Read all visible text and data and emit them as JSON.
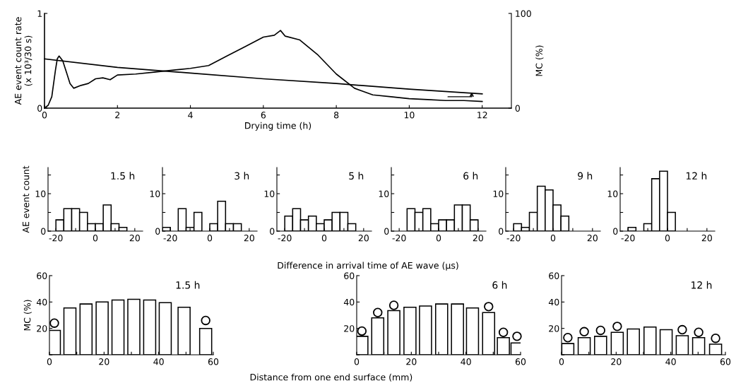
{
  "chart_data": [
    {
      "type": "line",
      "xlabel": "Drying time (h)",
      "ylabel": "AE event count rate\n(x 10³/30 s)",
      "y2label": "MC (%)",
      "xlim": [
        0,
        12.8
      ],
      "xticks": [
        0,
        2,
        4,
        6,
        8,
        10,
        12
      ],
      "ylim": [
        0,
        1
      ],
      "yticks": [
        0,
        1
      ],
      "y2lim": [
        0,
        100
      ],
      "y2ticks": [
        0,
        100
      ],
      "grid": false,
      "legend": false,
      "marker": "none",
      "line_style": "solid",
      "series": [
        {
          "color": "#000000",
          "x": [
            0,
            0.1,
            0.2,
            0.3,
            0.35,
            0.4,
            0.5,
            0.6,
            0.7,
            0.8,
            1.0,
            1.2,
            1.4,
            1.6,
            1.8,
            2.0,
            2.5,
            3.0,
            3.5,
            4.0,
            4.5,
            5.0,
            5.5,
            6.0,
            6.3,
            6.47,
            6.6,
            7.0,
            7.5,
            8.0,
            8.5,
            9.0,
            9.5,
            10.0,
            10.5,
            11.0,
            11.5,
            12.0
          ],
          "values": [
            0,
            0.03,
            0.12,
            0.4,
            0.52,
            0.55,
            0.5,
            0.38,
            0.26,
            0.21,
            0.24,
            0.26,
            0.31,
            0.32,
            0.3,
            0.35,
            0.36,
            0.38,
            0.4,
            0.42,
            0.45,
            0.55,
            0.65,
            0.75,
            0.77,
            0.82,
            0.76,
            0.72,
            0.56,
            0.36,
            0.21,
            0.14,
            0.12,
            0.1,
            0.09,
            0.08,
            0.08,
            0.07
          ]
        },
        {
          "color": "#000000",
          "axis": "y2",
          "x": [
            0,
            2,
            4,
            6,
            8,
            10,
            12
          ],
          "values": [
            52,
            43,
            37,
            31,
            26,
            20,
            15
          ]
        }
      ]
    },
    {
      "type": "histogram",
      "title": "1.5 h",
      "ylabel": "AE event count",
      "color": "#ffffff",
      "bins": [
        -24,
        -20,
        -16,
        -12,
        -8,
        -4,
        0,
        4,
        8,
        12,
        16,
        20,
        24
      ],
      "values": [
        0,
        3,
        6,
        6,
        5,
        2,
        2,
        7,
        2,
        1,
        0,
        0
      ],
      "xlim": [
        -24,
        24
      ],
      "xticks": [
        -20,
        {
          "value": -10,
          "label": null
        },
        0,
        {
          "value": 10,
          "label": null
        },
        20
      ],
      "ylim": [
        0,
        17
      ],
      "yticks": [
        0,
        {
          "value": 5,
          "label": null
        },
        10,
        {
          "value": 15,
          "label": null
        }
      ]
    },
    {
      "type": "histogram",
      "title": "3 h",
      "color": "#ffffff",
      "bins": [
        -24,
        -20,
        -16,
        -12,
        -8,
        -4,
        0,
        4,
        8,
        12,
        16,
        20,
        24
      ],
      "values": [
        1,
        0,
        6,
        1,
        5,
        0,
        2,
        8,
        2,
        2,
        0,
        0
      ],
      "xlim": [
        -24,
        24
      ],
      "xticks": [
        -20,
        {
          "value": -10,
          "label": null
        },
        0,
        {
          "value": 10,
          "label": null
        },
        20
      ],
      "ylim": [
        0,
        17
      ],
      "yticks": [
        0,
        {
          "value": 5,
          "label": null
        },
        10,
        {
          "value": 15,
          "label": null
        }
      ]
    },
    {
      "type": "histogram",
      "title": "5 h",
      "xlabel": "Difference in arrival time of AE wave (μs)",
      "color": "#ffffff",
      "bins": [
        -24,
        -20,
        -16,
        -12,
        -8,
        -4,
        0,
        4,
        8,
        12,
        16,
        20,
        24
      ],
      "values": [
        0,
        4,
        6,
        3,
        4,
        2,
        3,
        5,
        5,
        2,
        0,
        0
      ],
      "xlim": [
        -24,
        24
      ],
      "xticks": [
        -20,
        {
          "value": -10,
          "label": null
        },
        0,
        {
          "value": 10,
          "label": null
        },
        20
      ],
      "ylim": [
        0,
        17
      ],
      "yticks": [
        0,
        {
          "value": 5,
          "label": null
        },
        10,
        {
          "value": 15,
          "label": null
        }
      ]
    },
    {
      "type": "histogram",
      "title": "6 h",
      "color": "#ffffff",
      "bins": [
        -24,
        -20,
        -16,
        -12,
        -8,
        -4,
        0,
        4,
        8,
        12,
        16,
        20,
        24
      ],
      "values": [
        0,
        0,
        6,
        5,
        6,
        2,
        3,
        3,
        7,
        7,
        3,
        0
      ],
      "xlim": [
        -24,
        24
      ],
      "xticks": [
        -20,
        {
          "value": -10,
          "label": null
        },
        0,
        {
          "value": 10,
          "label": null
        },
        20
      ],
      "ylim": [
        0,
        17
      ],
      "yticks": [
        0,
        {
          "value": 5,
          "label": null
        },
        10,
        {
          "value": 15,
          "label": null
        }
      ]
    },
    {
      "type": "histogram",
      "title": "9 h",
      "color": "#ffffff",
      "bins": [
        -24,
        -20,
        -16,
        -12,
        -8,
        -4,
        0,
        4,
        8,
        12,
        16,
        20,
        24
      ],
      "values": [
        0,
        2,
        1,
        5,
        12,
        11,
        7,
        4,
        0,
        0,
        0,
        0
      ],
      "xlim": [
        -24,
        24
      ],
      "xticks": [
        -20,
        {
          "value": -10,
          "label": null
        },
        0,
        {
          "value": 10,
          "label": null
        },
        20
      ],
      "ylim": [
        0,
        17
      ],
      "yticks": [
        0,
        {
          "value": 5,
          "label": null
        },
        10,
        {
          "value": 15,
          "label": null
        }
      ]
    },
    {
      "type": "histogram",
      "title": "12 h",
      "color": "#ffffff",
      "bins": [
        -24,
        -20,
        -16,
        -12,
        -8,
        -4,
        0,
        4,
        8,
        12,
        16,
        20,
        24
      ],
      "values": [
        0,
        1,
        0,
        2,
        14,
        16,
        5,
        0,
        0,
        0,
        0,
        0
      ],
      "xlim": [
        -24,
        24
      ],
      "xticks": [
        -20,
        {
          "value": -10,
          "label": null
        },
        0,
        {
          "value": 10,
          "label": null
        },
        20
      ],
      "ylim": [
        0,
        17
      ],
      "yticks": [
        0,
        {
          "value": 5,
          "label": null
        },
        10,
        {
          "value": 15,
          "label": null
        }
      ]
    },
    {
      "type": "bar",
      "title": "1.5 h",
      "ylabel": "MC (%)",
      "xlim": [
        0,
        60
      ],
      "xticks": [
        0,
        {
          "value": 10,
          "label": null
        },
        20,
        {
          "value": 30,
          "label": null
        },
        40,
        {
          "value": 50,
          "label": null
        },
        60
      ],
      "ylim": [
        0,
        60
      ],
      "yticks": [
        {
          "value": 0,
          "label": null
        },
        20,
        40,
        60
      ],
      "series": [
        {
          "color": "#ffffff",
          "x": [
            1.8,
            7.5,
            13.4,
            19.3,
            25.1,
            30.9,
            36.7,
            42.4,
            49.3,
            57.2
          ],
          "values": [
            18.5,
            35.5,
            38.5,
            40,
            41.5,
            42,
            41.5,
            39.5,
            36,
            20
          ]
        },
        {
          "type": "scatter",
          "color": "#ffffff",
          "marker": "circle",
          "x": [
            1.8,
            57.2
          ],
          "values": [
            24,
            26
          ]
        }
      ]
    },
    {
      "type": "bar",
      "title": "6 h",
      "xlabel": "Distance from one end surface (mm)",
      "xlim": [
        0,
        60
      ],
      "xticks": [
        0,
        {
          "value": 10,
          "label": null
        },
        20,
        {
          "value": 30,
          "label": null
        },
        40,
        {
          "value": 50,
          "label": null
        },
        60
      ],
      "ylim": [
        0,
        60
      ],
      "yticks": [
        {
          "value": 0,
          "label": null
        },
        20,
        40,
        60
      ],
      "series": [
        {
          "color": "#ffffff",
          "x": [
            1.9,
            7.7,
            13.6,
            19.5,
            25.2,
            31.1,
            36.9,
            42.4,
            48.3,
            53.7,
            58.7
          ],
          "values": [
            14,
            28,
            33.5,
            36,
            37,
            38.5,
            38.5,
            35.5,
            32,
            13,
            9
          ]
        },
        {
          "type": "scatter",
          "color": "#ffffff",
          "marker": "circle",
          "x": [
            1.9,
            7.7,
            13.6,
            48.3,
            53.7,
            58.7
          ],
          "values": [
            18,
            32,
            37.5,
            36.5,
            17,
            14
          ]
        }
      ]
    },
    {
      "type": "bar",
      "title": "12 h",
      "xlim": [
        0,
        60
      ],
      "xticks": [
        0,
        {
          "value": 10,
          "label": null
        },
        20,
        {
          "value": 30,
          "label": null
        },
        40,
        {
          "value": 50,
          "label": null
        },
        60
      ],
      "ylim": [
        0,
        60
      ],
      "yticks": [
        {
          "value": 0,
          "label": null
        },
        20,
        40,
        60
      ],
      "series": [
        {
          "color": "#ffffff",
          "x": [
            2.3,
            8.3,
            14.3,
            20.4,
            26.3,
            32.4,
            38.3,
            44.2,
            50.2,
            56.4
          ],
          "values": [
            8.5,
            13,
            14,
            17,
            19.5,
            21,
            19,
            14.5,
            13,
            8
          ]
        },
        {
          "type": "scatter",
          "color": "#ffffff",
          "marker": "circle",
          "x": [
            2.3,
            8.3,
            14.3,
            20.4,
            44.2,
            50.2,
            56.4
          ],
          "values": [
            13,
            17.5,
            18.5,
            21.5,
            19,
            17,
            12.5
          ]
        }
      ]
    }
  ]
}
